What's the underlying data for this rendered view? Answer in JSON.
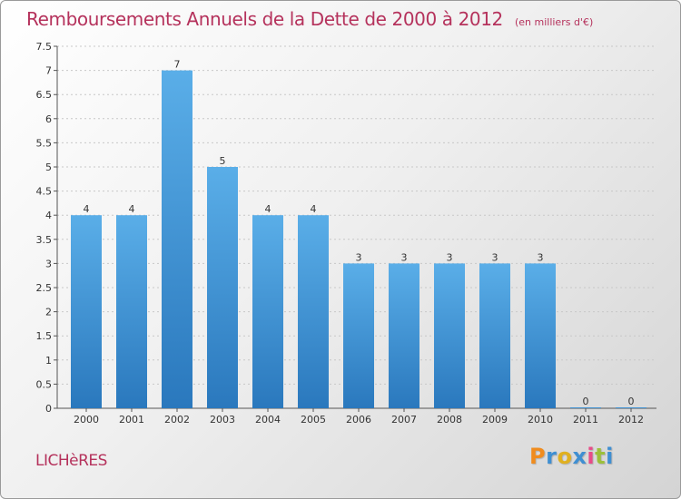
{
  "header": {
    "title": "Remboursements Annuels de la Dette de 2000 à 2012",
    "unit": "(en milliers d'€)"
  },
  "commune": "LICHèRES",
  "logo": {
    "letters": [
      "P",
      "r",
      "o",
      "x",
      "i",
      "t",
      "i"
    ],
    "colors": [
      "#f08c1e",
      "#3f8fd2",
      "#e0b020",
      "#3f8fd2",
      "#e84c88",
      "#9cc03a",
      "#3f8fd2"
    ]
  },
  "colors": {
    "bar_light": "#5aaee8",
    "bar_dark": "#2a78bd",
    "title": "#b5325c",
    "grid": "#c8c8c8"
  },
  "chart_data": {
    "type": "bar",
    "categories": [
      "2000",
      "2001",
      "2002",
      "2003",
      "2004",
      "2005",
      "2006",
      "2007",
      "2008",
      "2009",
      "2010",
      "2011",
      "2012"
    ],
    "values": [
      4,
      4,
      7,
      5,
      4,
      4,
      3,
      3,
      3,
      3,
      3,
      0,
      0
    ],
    "value_labels": [
      "4",
      "4",
      "7",
      "5",
      "4",
      "4",
      "3",
      "3",
      "3",
      "3",
      "3",
      "0",
      "0"
    ],
    "ylim": [
      0,
      7.5
    ],
    "yticks": [
      "0",
      "0.5",
      "1",
      "1.5",
      "2",
      "2.5",
      "3",
      "3.5",
      "4",
      "4.5",
      "5",
      "5.5",
      "6",
      "6.5",
      "7",
      "7.5"
    ],
    "ytick_values": [
      0,
      0.5,
      1,
      1.5,
      2,
      2.5,
      3,
      3.5,
      4,
      4.5,
      5,
      5.5,
      6,
      6.5,
      7,
      7.5
    ],
    "grid": true,
    "legend": "none"
  }
}
